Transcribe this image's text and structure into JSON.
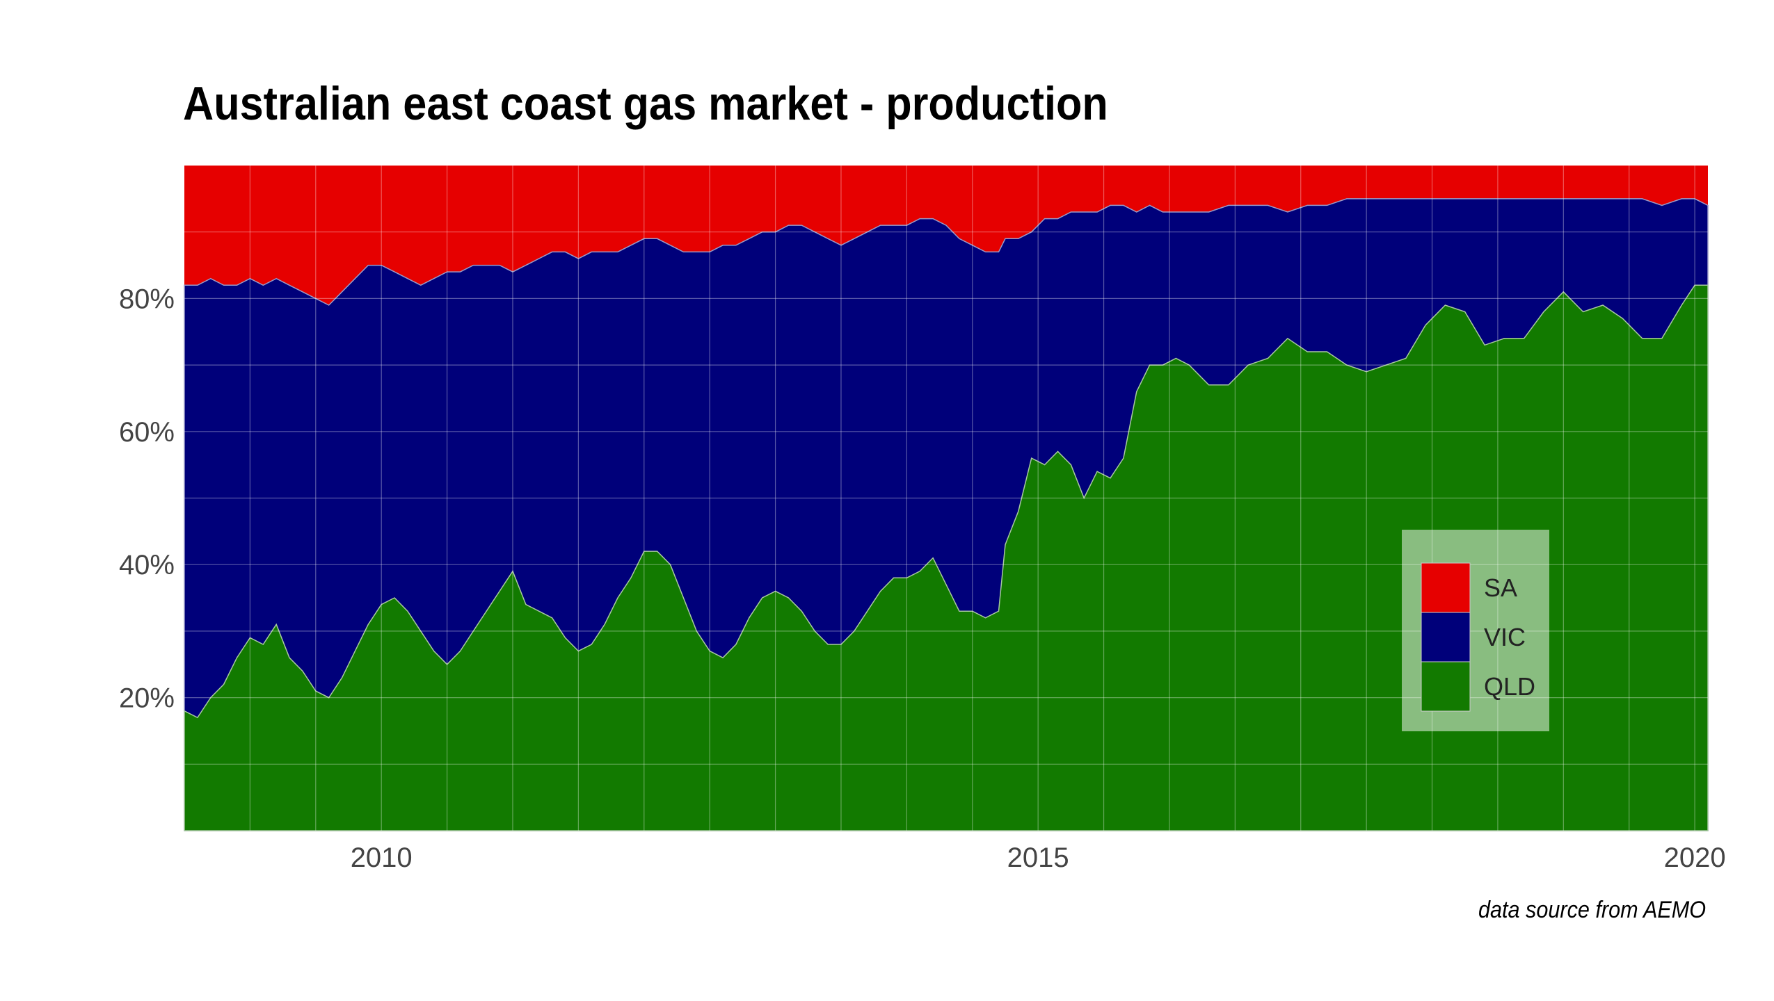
{
  "chart_data": {
    "type": "area",
    "stacked": true,
    "normalized": true,
    "title": "Australian east coast gas market - production",
    "caption": "data source from AEMO",
    "xlabel": "",
    "ylabel": "",
    "x_range": [
      2008.5,
      2020.1
    ],
    "y_range": [
      0,
      1
    ],
    "x_ticks": [
      {
        "value": 2010,
        "label": "2010"
      },
      {
        "value": 2015,
        "label": "2015"
      },
      {
        "value": 2020,
        "label": "2020"
      }
    ],
    "y_ticks": [
      {
        "value": 0.2,
        "label": "20%"
      },
      {
        "value": 0.4,
        "label": "40%"
      },
      {
        "value": 0.6,
        "label": "60%"
      },
      {
        "value": 0.8,
        "label": "80%"
      }
    ],
    "grid": true,
    "legend": {
      "placement": "bottom-right",
      "entries": [
        {
          "name": "SA",
          "color": "#e60000"
        },
        {
          "name": "VIC",
          "color": "#00007a"
        },
        {
          "name": "QLD",
          "color": "#127a00"
        }
      ]
    },
    "series": [
      {
        "name": "QLD",
        "color": "#127a00",
        "points": [
          [
            2008.5,
            0.18
          ],
          [
            2008.6,
            0.17
          ],
          [
            2008.7,
            0.2
          ],
          [
            2008.8,
            0.22
          ],
          [
            2008.9,
            0.26
          ],
          [
            2009.0,
            0.29
          ],
          [
            2009.1,
            0.28
          ],
          [
            2009.2,
            0.31
          ],
          [
            2009.3,
            0.26
          ],
          [
            2009.4,
            0.24
          ],
          [
            2009.5,
            0.21
          ],
          [
            2009.6,
            0.2
          ],
          [
            2009.7,
            0.23
          ],
          [
            2009.8,
            0.27
          ],
          [
            2009.9,
            0.31
          ],
          [
            2010.0,
            0.34
          ],
          [
            2010.1,
            0.35
          ],
          [
            2010.2,
            0.33
          ],
          [
            2010.3,
            0.3
          ],
          [
            2010.4,
            0.27
          ],
          [
            2010.5,
            0.25
          ],
          [
            2010.6,
            0.27
          ],
          [
            2010.7,
            0.3
          ],
          [
            2010.8,
            0.33
          ],
          [
            2010.9,
            0.36
          ],
          [
            2011.0,
            0.39
          ],
          [
            2011.1,
            0.34
          ],
          [
            2011.2,
            0.33
          ],
          [
            2011.3,
            0.32
          ],
          [
            2011.4,
            0.29
          ],
          [
            2011.5,
            0.27
          ],
          [
            2011.6,
            0.28
          ],
          [
            2011.7,
            0.31
          ],
          [
            2011.8,
            0.35
          ],
          [
            2011.9,
            0.38
          ],
          [
            2012.0,
            0.42
          ],
          [
            2012.1,
            0.42
          ],
          [
            2012.2,
            0.4
          ],
          [
            2012.3,
            0.35
          ],
          [
            2012.4,
            0.3
          ],
          [
            2012.5,
            0.27
          ],
          [
            2012.6,
            0.26
          ],
          [
            2012.7,
            0.28
          ],
          [
            2012.8,
            0.32
          ],
          [
            2012.9,
            0.35
          ],
          [
            2013.0,
            0.36
          ],
          [
            2013.1,
            0.35
          ],
          [
            2013.2,
            0.33
          ],
          [
            2013.3,
            0.3
          ],
          [
            2013.4,
            0.28
          ],
          [
            2013.5,
            0.28
          ],
          [
            2013.6,
            0.3
          ],
          [
            2013.7,
            0.33
          ],
          [
            2013.8,
            0.36
          ],
          [
            2013.9,
            0.38
          ],
          [
            2014.0,
            0.38
          ],
          [
            2014.1,
            0.39
          ],
          [
            2014.2,
            0.41
          ],
          [
            2014.3,
            0.37
          ],
          [
            2014.4,
            0.33
          ],
          [
            2014.5,
            0.33
          ],
          [
            2014.6,
            0.32
          ],
          [
            2014.7,
            0.33
          ],
          [
            2014.75,
            0.43
          ],
          [
            2014.85,
            0.48
          ],
          [
            2014.95,
            0.56
          ],
          [
            2015.05,
            0.55
          ],
          [
            2015.15,
            0.57
          ],
          [
            2015.25,
            0.55
          ],
          [
            2015.35,
            0.5
          ],
          [
            2015.45,
            0.54
          ],
          [
            2015.55,
            0.53
          ],
          [
            2015.65,
            0.56
          ],
          [
            2015.75,
            0.66
          ],
          [
            2015.85,
            0.7
          ],
          [
            2015.95,
            0.7
          ],
          [
            2016.05,
            0.71
          ],
          [
            2016.15,
            0.7
          ],
          [
            2016.3,
            0.67
          ],
          [
            2016.45,
            0.67
          ],
          [
            2016.6,
            0.7
          ],
          [
            2016.75,
            0.71
          ],
          [
            2016.9,
            0.74
          ],
          [
            2017.05,
            0.72
          ],
          [
            2017.2,
            0.72
          ],
          [
            2017.35,
            0.7
          ],
          [
            2017.5,
            0.69
          ],
          [
            2017.65,
            0.7
          ],
          [
            2017.8,
            0.71
          ],
          [
            2017.95,
            0.76
          ],
          [
            2018.1,
            0.79
          ],
          [
            2018.25,
            0.78
          ],
          [
            2018.4,
            0.73
          ],
          [
            2018.55,
            0.74
          ],
          [
            2018.7,
            0.74
          ],
          [
            2018.85,
            0.78
          ],
          [
            2019.0,
            0.81
          ],
          [
            2019.15,
            0.78
          ],
          [
            2019.3,
            0.79
          ],
          [
            2019.45,
            0.77
          ],
          [
            2019.6,
            0.74
          ],
          [
            2019.75,
            0.74
          ],
          [
            2019.9,
            0.79
          ],
          [
            2020.0,
            0.82
          ],
          [
            2020.1,
            0.82
          ]
        ]
      },
      {
        "name": "VIC",
        "color": "#00007a",
        "upper": [
          [
            2008.5,
            0.82
          ],
          [
            2008.6,
            0.82
          ],
          [
            2008.7,
            0.83
          ],
          [
            2008.8,
            0.82
          ],
          [
            2008.9,
            0.82
          ],
          [
            2009.0,
            0.83
          ],
          [
            2009.1,
            0.82
          ],
          [
            2009.2,
            0.83
          ],
          [
            2009.3,
            0.82
          ],
          [
            2009.4,
            0.81
          ],
          [
            2009.5,
            0.8
          ],
          [
            2009.6,
            0.79
          ],
          [
            2009.7,
            0.81
          ],
          [
            2009.8,
            0.83
          ],
          [
            2009.9,
            0.85
          ],
          [
            2010.0,
            0.85
          ],
          [
            2010.1,
            0.84
          ],
          [
            2010.2,
            0.83
          ],
          [
            2010.3,
            0.82
          ],
          [
            2010.4,
            0.83
          ],
          [
            2010.5,
            0.84
          ],
          [
            2010.6,
            0.84
          ],
          [
            2010.7,
            0.85
          ],
          [
            2010.8,
            0.85
          ],
          [
            2010.9,
            0.85
          ],
          [
            2011.0,
            0.84
          ],
          [
            2011.1,
            0.85
          ],
          [
            2011.2,
            0.86
          ],
          [
            2011.3,
            0.87
          ],
          [
            2011.4,
            0.87
          ],
          [
            2011.5,
            0.86
          ],
          [
            2011.6,
            0.87
          ],
          [
            2011.7,
            0.87
          ],
          [
            2011.8,
            0.87
          ],
          [
            2011.9,
            0.88
          ],
          [
            2012.0,
            0.89
          ],
          [
            2012.1,
            0.89
          ],
          [
            2012.2,
            0.88
          ],
          [
            2012.3,
            0.87
          ],
          [
            2012.4,
            0.87
          ],
          [
            2012.5,
            0.87
          ],
          [
            2012.6,
            0.88
          ],
          [
            2012.7,
            0.88
          ],
          [
            2012.8,
            0.89
          ],
          [
            2012.9,
            0.9
          ],
          [
            2013.0,
            0.9
          ],
          [
            2013.1,
            0.91
          ],
          [
            2013.2,
            0.91
          ],
          [
            2013.3,
            0.9
          ],
          [
            2013.4,
            0.89
          ],
          [
            2013.5,
            0.88
          ],
          [
            2013.6,
            0.89
          ],
          [
            2013.7,
            0.9
          ],
          [
            2013.8,
            0.91
          ],
          [
            2013.9,
            0.91
          ],
          [
            2014.0,
            0.91
          ],
          [
            2014.1,
            0.92
          ],
          [
            2014.2,
            0.92
          ],
          [
            2014.3,
            0.91
          ],
          [
            2014.4,
            0.89
          ],
          [
            2014.5,
            0.88
          ],
          [
            2014.6,
            0.87
          ],
          [
            2014.7,
            0.87
          ],
          [
            2014.75,
            0.89
          ],
          [
            2014.85,
            0.89
          ],
          [
            2014.95,
            0.9
          ],
          [
            2015.05,
            0.92
          ],
          [
            2015.15,
            0.92
          ],
          [
            2015.25,
            0.93
          ],
          [
            2015.35,
            0.93
          ],
          [
            2015.45,
            0.93
          ],
          [
            2015.55,
            0.94
          ],
          [
            2015.65,
            0.94
          ],
          [
            2015.75,
            0.93
          ],
          [
            2015.85,
            0.94
          ],
          [
            2015.95,
            0.93
          ],
          [
            2016.05,
            0.93
          ],
          [
            2016.15,
            0.93
          ],
          [
            2016.3,
            0.93
          ],
          [
            2016.45,
            0.94
          ],
          [
            2016.6,
            0.94
          ],
          [
            2016.75,
            0.94
          ],
          [
            2016.9,
            0.93
          ],
          [
            2017.05,
            0.94
          ],
          [
            2017.2,
            0.94
          ],
          [
            2017.35,
            0.95
          ],
          [
            2017.5,
            0.95
          ],
          [
            2017.65,
            0.95
          ],
          [
            2017.8,
            0.95
          ],
          [
            2017.95,
            0.95
          ],
          [
            2018.1,
            0.95
          ],
          [
            2018.25,
            0.95
          ],
          [
            2018.4,
            0.95
          ],
          [
            2018.55,
            0.95
          ],
          [
            2018.7,
            0.95
          ],
          [
            2018.85,
            0.95
          ],
          [
            2019.0,
            0.95
          ],
          [
            2019.15,
            0.95
          ],
          [
            2019.3,
            0.95
          ],
          [
            2019.45,
            0.95
          ],
          [
            2019.6,
            0.95
          ],
          [
            2019.75,
            0.94
          ],
          [
            2019.9,
            0.95
          ],
          [
            2020.0,
            0.95
          ],
          [
            2020.1,
            0.94
          ]
        ]
      },
      {
        "name": "SA",
        "color": "#e60000",
        "upper": [
          [
            2008.5,
            1.0
          ],
          [
            2020.1,
            1.0
          ]
        ]
      }
    ]
  }
}
